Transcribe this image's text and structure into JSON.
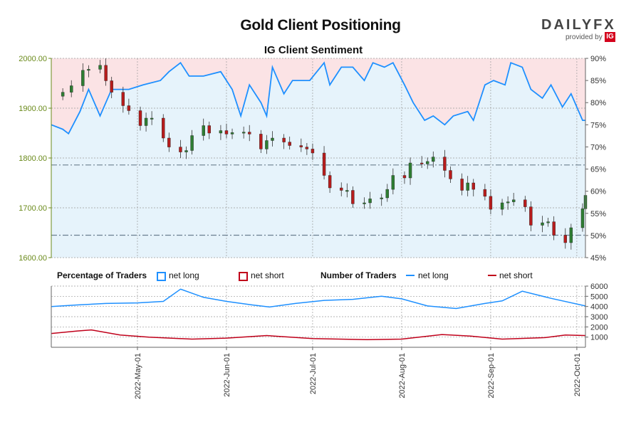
{
  "title": "Gold Client Positioning",
  "subtitle": "IG Client Sentiment",
  "logo": {
    "brand": "DAILYFX",
    "tagline": "provided by",
    "badge": "IG"
  },
  "legend": {
    "percentage_heading": "Percentage of Traders",
    "number_heading": "Number of Traders",
    "net_long": "net long",
    "net_short": "net short"
  },
  "colors": {
    "long": "#1e90ff",
    "short": "#c0001a",
    "candle_up": "#2e7d32",
    "candle_down": "#b71c1c",
    "bg_long": "#e6f3fb",
    "bg_short": "#fbe3e5",
    "left_axis": "#6a8a1a"
  },
  "chart_data": [
    {
      "type": "candlestick",
      "series_name": "Gold",
      "ylim": [
        1600,
        2000
      ],
      "left_ticks": [
        "1600.00",
        "1700.00",
        "1800.00",
        "1900.00",
        "2000.00"
      ],
      "right_ylim": [
        45,
        90
      ],
      "right_ticks": [
        "45%",
        "50%",
        "55%",
        "60%",
        "65%",
        "70%",
        "75%",
        "80%",
        "85%",
        "90%"
      ],
      "reference_lines": [
        1645,
        1786
      ],
      "grid": true,
      "x_start": "2022-04-01",
      "x_end": "2022-10-04",
      "closes": [
        {
          "date": "2022-04-05",
          "value": 1932
        },
        {
          "date": "2022-04-08",
          "value": 1945
        },
        {
          "date": "2022-04-12",
          "value": 1976
        },
        {
          "date": "2022-04-14",
          "value": 1978
        },
        {
          "date": "2022-04-18",
          "value": 1986
        },
        {
          "date": "2022-04-20",
          "value": 1955
        },
        {
          "date": "2022-04-22",
          "value": 1932
        },
        {
          "date": "2022-04-26",
          "value": 1905
        },
        {
          "date": "2022-04-28",
          "value": 1895
        },
        {
          "date": "2022-05-02",
          "value": 1865
        },
        {
          "date": "2022-05-04",
          "value": 1880
        },
        {
          "date": "2022-05-06",
          "value": 1880
        },
        {
          "date": "2022-05-10",
          "value": 1840
        },
        {
          "date": "2022-05-12",
          "value": 1822
        },
        {
          "date": "2022-05-16",
          "value": 1812
        },
        {
          "date": "2022-05-18",
          "value": 1815
        },
        {
          "date": "2022-05-20",
          "value": 1845
        },
        {
          "date": "2022-05-24",
          "value": 1865
        },
        {
          "date": "2022-05-26",
          "value": 1850
        },
        {
          "date": "2022-05-30",
          "value": 1855
        },
        {
          "date": "2022-06-01",
          "value": 1848
        },
        {
          "date": "2022-06-03",
          "value": 1851
        },
        {
          "date": "2022-06-07",
          "value": 1852
        },
        {
          "date": "2022-06-09",
          "value": 1848
        },
        {
          "date": "2022-06-13",
          "value": 1818
        },
        {
          "date": "2022-06-15",
          "value": 1835
        },
        {
          "date": "2022-06-17",
          "value": 1840
        },
        {
          "date": "2022-06-21",
          "value": 1832
        },
        {
          "date": "2022-06-23",
          "value": 1825
        },
        {
          "date": "2022-06-27",
          "value": 1822
        },
        {
          "date": "2022-06-29",
          "value": 1818
        },
        {
          "date": "2022-07-01",
          "value": 1810
        },
        {
          "date": "2022-07-05",
          "value": 1765
        },
        {
          "date": "2022-07-07",
          "value": 1740
        },
        {
          "date": "2022-07-11",
          "value": 1735
        },
        {
          "date": "2022-07-13",
          "value": 1735
        },
        {
          "date": "2022-07-15",
          "value": 1708
        },
        {
          "date": "2022-07-19",
          "value": 1710
        },
        {
          "date": "2022-07-21",
          "value": 1718
        },
        {
          "date": "2022-07-25",
          "value": 1720
        },
        {
          "date": "2022-07-27",
          "value": 1737
        },
        {
          "date": "2022-07-29",
          "value": 1765
        },
        {
          "date": "2022-08-02",
          "value": 1760
        },
        {
          "date": "2022-08-04",
          "value": 1790
        },
        {
          "date": "2022-08-08",
          "value": 1788
        },
        {
          "date": "2022-08-10",
          "value": 1793
        },
        {
          "date": "2022-08-12",
          "value": 1802
        },
        {
          "date": "2022-08-16",
          "value": 1775
        },
        {
          "date": "2022-08-18",
          "value": 1758
        },
        {
          "date": "2022-08-22",
          "value": 1735
        },
        {
          "date": "2022-08-24",
          "value": 1750
        },
        {
          "date": "2022-08-26",
          "value": 1737
        },
        {
          "date": "2022-08-30",
          "value": 1723
        },
        {
          "date": "2022-09-01",
          "value": 1697
        },
        {
          "date": "2022-09-05",
          "value": 1710
        },
        {
          "date": "2022-09-07",
          "value": 1712
        },
        {
          "date": "2022-09-09",
          "value": 1716
        },
        {
          "date": "2022-09-13",
          "value": 1702
        },
        {
          "date": "2022-09-15",
          "value": 1665
        },
        {
          "date": "2022-09-19",
          "value": 1670
        },
        {
          "date": "2022-09-21",
          "value": 1672
        },
        {
          "date": "2022-09-23",
          "value": 1645
        },
        {
          "date": "2022-09-27",
          "value": 1630
        },
        {
          "date": "2022-09-29",
          "value": 1660
        },
        {
          "date": "2022-10-03",
          "value": 1698
        },
        {
          "date": "2022-10-04",
          "value": 1725
        }
      ],
      "net_long_pct": [
        {
          "date": "2022-04-01",
          "value": 75
        },
        {
          "date": "2022-04-05",
          "value": 74
        },
        {
          "date": "2022-04-07",
          "value": 73
        },
        {
          "date": "2022-04-11",
          "value": 78
        },
        {
          "date": "2022-04-14",
          "value": 83
        },
        {
          "date": "2022-04-18",
          "value": 77
        },
        {
          "date": "2022-04-20",
          "value": 80
        },
        {
          "date": "2022-04-22",
          "value": 83
        },
        {
          "date": "2022-04-28",
          "value": 83
        },
        {
          "date": "2022-05-03",
          "value": 84
        },
        {
          "date": "2022-05-09",
          "value": 85
        },
        {
          "date": "2022-05-12",
          "value": 87
        },
        {
          "date": "2022-05-16",
          "value": 89
        },
        {
          "date": "2022-05-19",
          "value": 86
        },
        {
          "date": "2022-05-24",
          "value": 86
        },
        {
          "date": "2022-05-30",
          "value": 87
        },
        {
          "date": "2022-06-03",
          "value": 83
        },
        {
          "date": "2022-06-06",
          "value": 77
        },
        {
          "date": "2022-06-09",
          "value": 84
        },
        {
          "date": "2022-06-13",
          "value": 80
        },
        {
          "date": "2022-06-15",
          "value": 77
        },
        {
          "date": "2022-06-17",
          "value": 88
        },
        {
          "date": "2022-06-21",
          "value": 82
        },
        {
          "date": "2022-06-24",
          "value": 85
        },
        {
          "date": "2022-06-30",
          "value": 85
        },
        {
          "date": "2022-07-05",
          "value": 89
        },
        {
          "date": "2022-07-07",
          "value": 84
        },
        {
          "date": "2022-07-11",
          "value": 88
        },
        {
          "date": "2022-07-15",
          "value": 88
        },
        {
          "date": "2022-07-19",
          "value": 85
        },
        {
          "date": "2022-07-22",
          "value": 89
        },
        {
          "date": "2022-07-26",
          "value": 88
        },
        {
          "date": "2022-07-29",
          "value": 89
        },
        {
          "date": "2022-08-02",
          "value": 84
        },
        {
          "date": "2022-08-05",
          "value": 80
        },
        {
          "date": "2022-08-09",
          "value": 76
        },
        {
          "date": "2022-08-12",
          "value": 77
        },
        {
          "date": "2022-08-16",
          "value": 75
        },
        {
          "date": "2022-08-19",
          "value": 77
        },
        {
          "date": "2022-08-24",
          "value": 78
        },
        {
          "date": "2022-08-26",
          "value": 76
        },
        {
          "date": "2022-08-30",
          "value": 84
        },
        {
          "date": "2022-09-02",
          "value": 85
        },
        {
          "date": "2022-09-06",
          "value": 84
        },
        {
          "date": "2022-09-08",
          "value": 89
        },
        {
          "date": "2022-09-12",
          "value": 88
        },
        {
          "date": "2022-09-15",
          "value": 83
        },
        {
          "date": "2022-09-19",
          "value": 81
        },
        {
          "date": "2022-09-22",
          "value": 84
        },
        {
          "date": "2022-09-26",
          "value": 79
        },
        {
          "date": "2022-09-29",
          "value": 82
        },
        {
          "date": "2022-10-03",
          "value": 76
        },
        {
          "date": "2022-10-04",
          "value": 76
        }
      ]
    },
    {
      "type": "line",
      "ylim": [
        0,
        6000
      ],
      "right_ticks": [
        "1000",
        "2000",
        "3000",
        "4000",
        "5000",
        "6000"
      ],
      "grid": true,
      "x_ticks": [
        "2022-May-01",
        "2022-Jun-01",
        "2022-Jul-01",
        "2022-Aug-01",
        "2022-Sep-01",
        "2022-Oct-01"
      ],
      "series": [
        {
          "name": "net long",
          "points": [
            {
              "date": "2022-04-01",
              "value": 4000
            },
            {
              "date": "2022-04-10",
              "value": 4150
            },
            {
              "date": "2022-04-20",
              "value": 4300
            },
            {
              "date": "2022-05-01",
              "value": 4350
            },
            {
              "date": "2022-05-10",
              "value": 4500
            },
            {
              "date": "2022-05-16",
              "value": 5700
            },
            {
              "date": "2022-05-24",
              "value": 4900
            },
            {
              "date": "2022-06-01",
              "value": 4500
            },
            {
              "date": "2022-06-10",
              "value": 4150
            },
            {
              "date": "2022-06-16",
              "value": 3950
            },
            {
              "date": "2022-06-25",
              "value": 4300
            },
            {
              "date": "2022-07-05",
              "value": 4600
            },
            {
              "date": "2022-07-15",
              "value": 4700
            },
            {
              "date": "2022-07-25",
              "value": 5000
            },
            {
              "date": "2022-08-01",
              "value": 4750
            },
            {
              "date": "2022-08-10",
              "value": 4050
            },
            {
              "date": "2022-08-20",
              "value": 3800
            },
            {
              "date": "2022-08-30",
              "value": 4300
            },
            {
              "date": "2022-09-05",
              "value": 4550
            },
            {
              "date": "2022-09-12",
              "value": 5500
            },
            {
              "date": "2022-09-22",
              "value": 4800
            },
            {
              "date": "2022-10-04",
              "value": 4050
            }
          ]
        },
        {
          "name": "net short",
          "points": [
            {
              "date": "2022-04-01",
              "value": 1350
            },
            {
              "date": "2022-04-10",
              "value": 1600
            },
            {
              "date": "2022-04-15",
              "value": 1700
            },
            {
              "date": "2022-04-25",
              "value": 1200
            },
            {
              "date": "2022-05-05",
              "value": 1000
            },
            {
              "date": "2022-05-20",
              "value": 800
            },
            {
              "date": "2022-06-01",
              "value": 900
            },
            {
              "date": "2022-06-15",
              "value": 1150
            },
            {
              "date": "2022-07-01",
              "value": 850
            },
            {
              "date": "2022-07-20",
              "value": 750
            },
            {
              "date": "2022-08-01",
              "value": 800
            },
            {
              "date": "2022-08-15",
              "value": 1250
            },
            {
              "date": "2022-08-25",
              "value": 1100
            },
            {
              "date": "2022-09-05",
              "value": 800
            },
            {
              "date": "2022-09-20",
              "value": 950
            },
            {
              "date": "2022-09-27",
              "value": 1200
            },
            {
              "date": "2022-10-04",
              "value": 1150
            }
          ]
        }
      ]
    }
  ]
}
